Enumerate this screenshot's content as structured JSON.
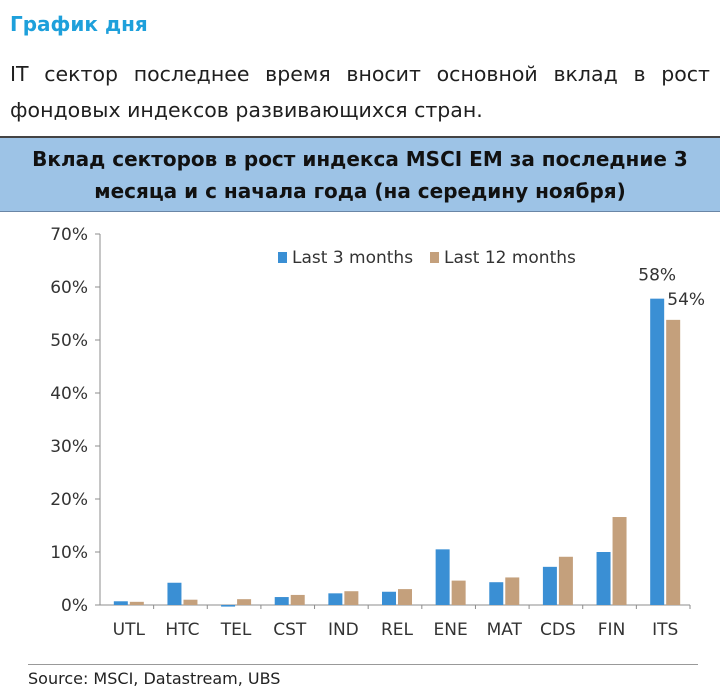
{
  "header": {
    "title": "График дня",
    "intro": "IT сектор последнее время вносит основной вклад в рост фондовых индексов развивающихся стран."
  },
  "chart_data": {
    "type": "bar",
    "title": "Вклад секторов в рост индекса MSCI EM за последние 3 месяца и с начала года (на середину ноября)",
    "categories": [
      "UTL",
      "HTC",
      "TEL",
      "CST",
      "IND",
      "REL",
      "ENE",
      "MAT",
      "CDS",
      "FIN",
      "ITS"
    ],
    "series": [
      {
        "name": "Last 3 months",
        "color": "#3a8fd4",
        "values": [
          0.7,
          4.2,
          -0.3,
          1.5,
          2.2,
          2.5,
          10.5,
          4.3,
          7.2,
          10.0,
          57.8
        ]
      },
      {
        "name": "Last 12 months",
        "color": "#c4a07c",
        "values": [
          0.6,
          1.0,
          1.1,
          1.9,
          2.6,
          3.0,
          4.6,
          5.2,
          9.1,
          16.6,
          53.8
        ]
      }
    ],
    "data_labels": [
      {
        "series": 0,
        "category": "ITS",
        "text": "58%"
      },
      {
        "series": 1,
        "category": "ITS",
        "text": "54%"
      }
    ],
    "yticks": [
      "0%",
      "10%",
      "20%",
      "30%",
      "40%",
      "50%",
      "60%",
      "70%"
    ],
    "ylim": [
      0,
      70
    ],
    "legend_position": "top-center",
    "grid": false
  },
  "footer": {
    "source": "Source:  MSCI, Datastream, UBS"
  }
}
